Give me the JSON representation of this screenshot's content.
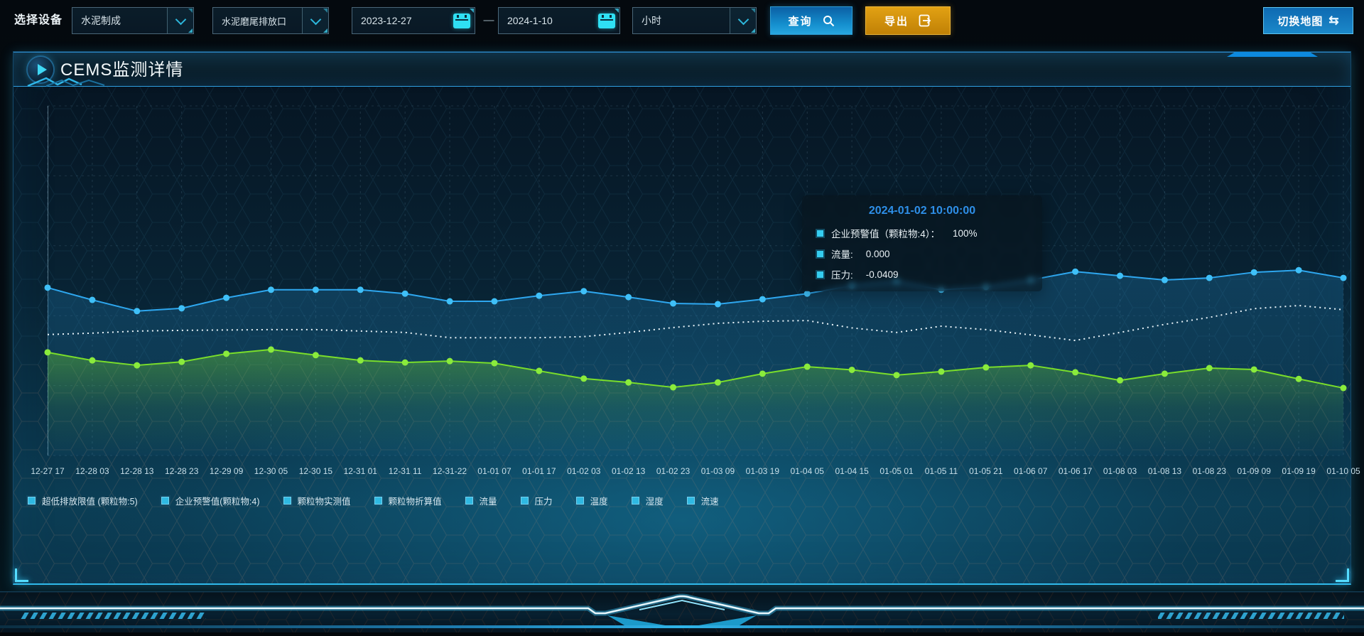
{
  "toolbar": {
    "device_label": "选择设备",
    "device_value": "水泥制成",
    "outlet_value": "水泥磨尾排放口",
    "date_start": "2023-12-27",
    "date_separator": "—",
    "date_end": "2024-1-10",
    "interval_value": "小时",
    "query_label": "查询",
    "export_label": "导出",
    "switch_map_label": "切换地图",
    "switch_map_icon": "⇆"
  },
  "panel": {
    "title": "CEMS监测详情"
  },
  "tooltip": {
    "title": "2024-01-02 10:00:00",
    "items": [
      {
        "label": "企业预警值（颗粒物:4）：",
        "value": "100%"
      },
      {
        "label": "流量:",
        "value": "0.000"
      },
      {
        "label": "压力:",
        "value": "-0.0409"
      }
    ]
  },
  "legend": {
    "items": [
      "超低排放限值 (颗粒物:5)",
      "企业预警值(颗粒物:4)",
      "颗粒物实测值",
      "颗粒物折算值",
      "流量",
      "压力",
      "温度",
      "湿度",
      "流速"
    ]
  },
  "colors": {
    "accent_cyan": "#2fb9ea",
    "blue_line": "#2ea7ef",
    "green_line": "#7ade2a",
    "dotted_line": "#e9f4f9",
    "query_blue": "#1590cf",
    "export_orange": "#d49210"
  },
  "chart_data": {
    "type": "line",
    "x_labels": [
      "12-27 17",
      "12-28 03",
      "12-28 13",
      "12-28 23",
      "12-29 09",
      "12-30 05",
      "12-30 15",
      "12-31 01",
      "12-31 11",
      "12-31-22",
      "01-01 07",
      "01-01 17",
      "01-02 03",
      "01-02 13",
      "01-02 23",
      "01-03 09",
      "01-03 19",
      "01-04 05",
      "01-04 15",
      "01-05 01",
      "01-05 11",
      "01-05 21",
      "01-06 07",
      "01-06 17",
      "01-08 03",
      "01-08 13",
      "01-08 23",
      "01-09 09",
      "01-09 19",
      "01-10 05"
    ],
    "series": [
      {
        "name": "企业预警值（颗粒物:4）",
        "color": "#2ea7ef",
        "marker_color": "#3fc0f8",
        "style": "solid",
        "markers": true,
        "area": true,
        "values": [
          48.0,
          44.5,
          41.3,
          42.1,
          45.1,
          47.4,
          47.4,
          47.4,
          46.3,
          44.1,
          44.1,
          45.7,
          47.0,
          45.3,
          43.5,
          43.3,
          44.7,
          46.3,
          48.6,
          49.8,
          47.4,
          48.2,
          50.2,
          52.6,
          51.4,
          50.2,
          50.8,
          52.4,
          53.0,
          50.8
        ]
      },
      {
        "name": "压力",
        "color": "#e9f4f9",
        "marker_color": "#e9f4f9",
        "style": "dotted",
        "markers": false,
        "area": false,
        "values": [
          34.6,
          35.0,
          35.6,
          35.8,
          35.9,
          36.0,
          36.0,
          35.6,
          35.2,
          33.7,
          33.7,
          33.7,
          34.0,
          35.2,
          36.6,
          37.8,
          38.4,
          38.6,
          36.5,
          35.2,
          37.0,
          36.0,
          34.5,
          32.9,
          35.2,
          37.5,
          39.5,
          42.0,
          42.9,
          41.7
        ]
      },
      {
        "name": "流量",
        "color": "#7ade2a",
        "marker_color": "#8aeb3c",
        "style": "solid",
        "markers": true,
        "area": true,
        "values": [
          29.5,
          27.2,
          25.8,
          26.8,
          29.1,
          30.3,
          28.7,
          27.2,
          26.6,
          27.0,
          26.4,
          24.2,
          22.0,
          20.9,
          19.5,
          20.9,
          23.4,
          25.4,
          24.5,
          23.0,
          24.0,
          25.2,
          25.8,
          23.8,
          21.5,
          23.4,
          25.0,
          24.6,
          21.9,
          19.3
        ]
      }
    ],
    "ylim": [
      0,
      100
    ],
    "values_note": "y-axis has no visible labels; values are estimated percent of plot height",
    "grid": true,
    "legend_position": "bottom-left"
  }
}
